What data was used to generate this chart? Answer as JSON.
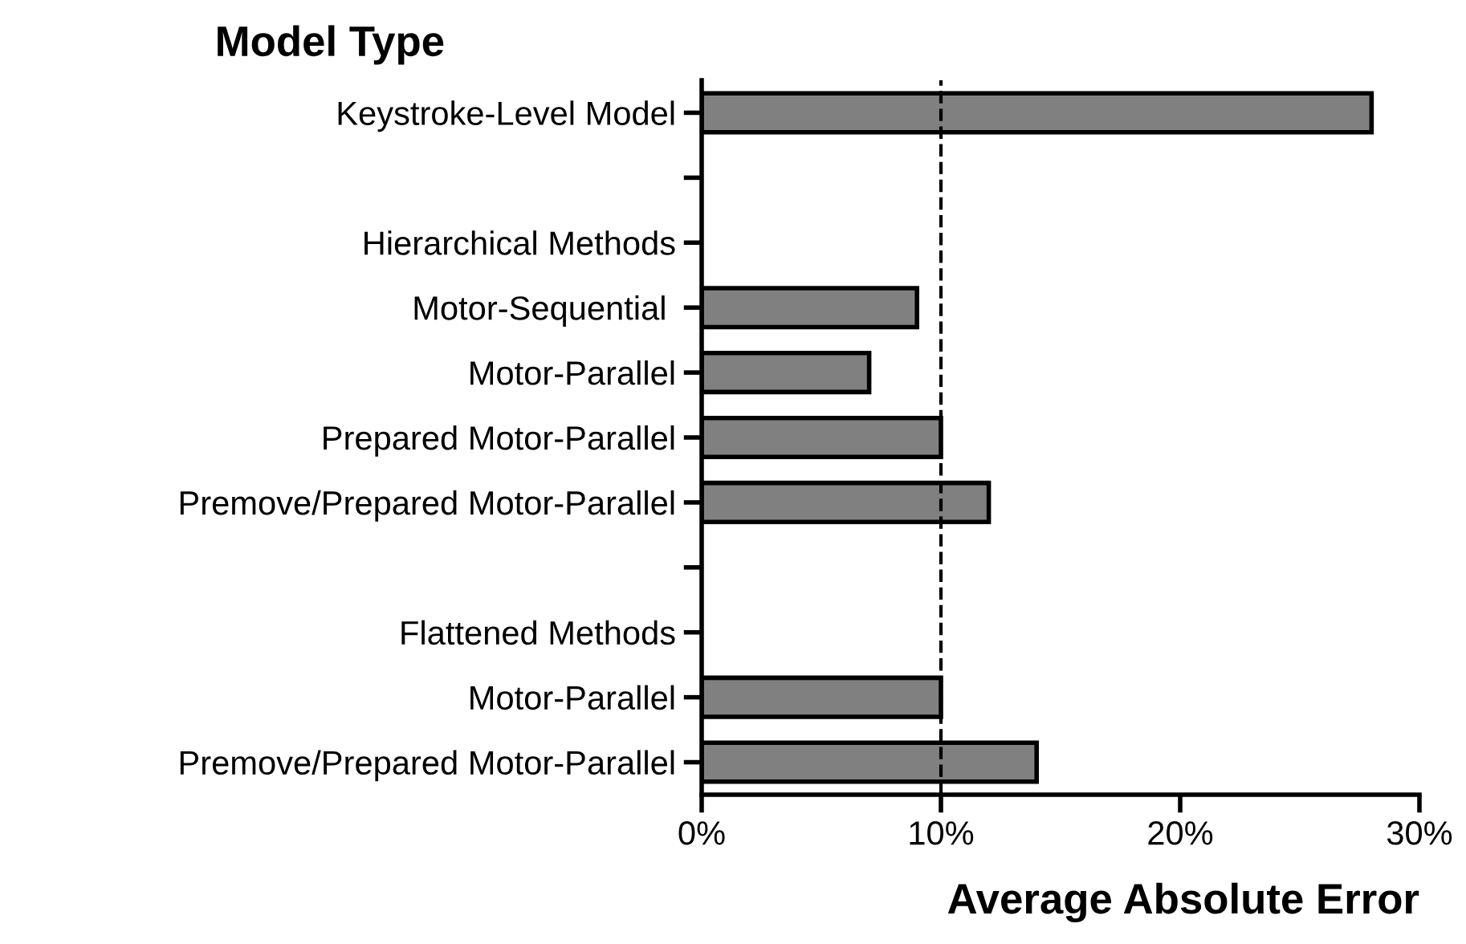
{
  "chart_data": {
    "type": "bar",
    "orientation": "horizontal",
    "title": "Model Type",
    "xlabel": "Average Absolute Error",
    "categories": [
      "Keystroke-Level Model",
      null,
      "Hierarchical Methods",
      "Motor-Sequential ",
      "Motor-Parallel",
      "Prepared Motor-Parallel",
      "Premove/Prepared Motor-Parallel",
      null,
      "Flattened Methods",
      "Motor-Parallel",
      "Premove/Prepared Motor-Parallel"
    ],
    "values": [
      28,
      null,
      null,
      9,
      7,
      10,
      12,
      null,
      null,
      10,
      14
    ],
    "color": "#808080",
    "xlim": [
      0,
      30
    ],
    "xticks": [
      {
        "value": 0,
        "label": "0%"
      },
      {
        "value": 10,
        "label": "10%"
      },
      {
        "value": 20,
        "label": "20%"
      },
      {
        "value": 30,
        "label": "30%"
      }
    ],
    "ref_lines": [
      {
        "axis": "x",
        "value": 10,
        "color": "#000000",
        "line_style": "dashed"
      }
    ],
    "grid": false,
    "legend": false
  }
}
